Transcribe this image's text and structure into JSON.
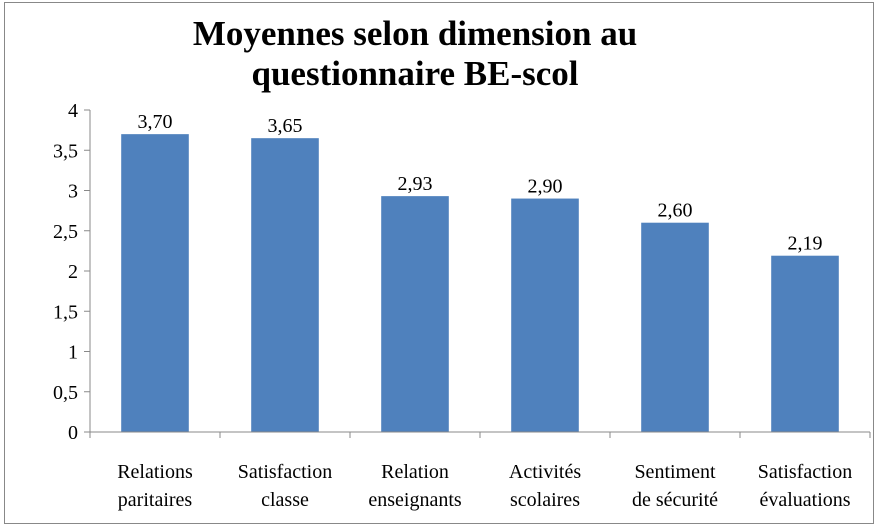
{
  "chart_data": {
    "type": "bar",
    "title": "Moyennes selon dimension au questionnaire BE-scol",
    "categories": [
      [
        "Relations",
        "paritaires"
      ],
      [
        "Satisfaction",
        "classe"
      ],
      [
        "Relation",
        "enseignants"
      ],
      [
        "Activités",
        "scolaires"
      ],
      [
        "Sentiment",
        "de sécurité"
      ],
      [
        "Satisfaction",
        "évaluations"
      ]
    ],
    "values": [
      3.7,
      3.65,
      2.93,
      2.9,
      2.6,
      2.19
    ],
    "value_labels": [
      "3,70",
      "3,65",
      "2,93",
      "2,90",
      "2,60",
      "2,19"
    ],
    "color": "#4f81bd",
    "ylim": [
      0,
      4
    ],
    "yticks": [
      0,
      {
        "value": 0.5,
        "label": "0,5"
      },
      1,
      {
        "value": 1.5,
        "label": "1,5"
      },
      2,
      {
        "value": 2.5,
        "label": "2,5"
      },
      3,
      {
        "value": 3.5,
        "label": "3,5"
      },
      4
    ],
    "grid": false
  }
}
